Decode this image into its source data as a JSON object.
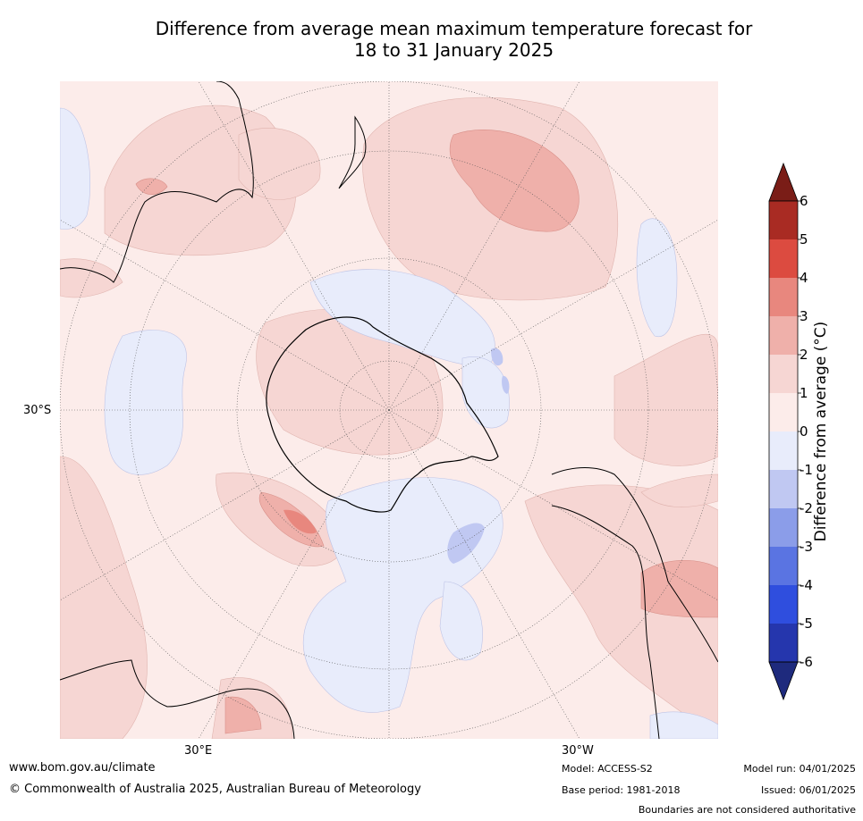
{
  "title": {
    "line1": "Difference from average mean maximum temperature forecast for",
    "line2": "18 to 31 January 2025"
  },
  "map": {
    "projection": "south-polar stereographic",
    "lat_label": "30°S",
    "lon_labels": [
      "30°E",
      "30°W"
    ]
  },
  "colorbar": {
    "title": "Difference from average (°C)",
    "ticks": [
      "6",
      "5",
      "4",
      "3",
      "2",
      "1",
      "0",
      "-1",
      "-2",
      "-3",
      "-4",
      "-5",
      "-6"
    ],
    "bands": [
      {
        "range": ">6",
        "color": "#7a1d17"
      },
      {
        "range": "5 to 6",
        "color": "#a92b23"
      },
      {
        "range": "4 to 5",
        "color": "#dc4b40"
      },
      {
        "range": "3 to 4",
        "color": "#e8877e"
      },
      {
        "range": "2 to 3",
        "color": "#efb0aa"
      },
      {
        "range": "1 to 2",
        "color": "#f6d6d3"
      },
      {
        "range": "0 to 1",
        "color": "#fcecea"
      },
      {
        "range": "-1 to 0",
        "color": "#e8ecfb"
      },
      {
        "range": "-2 to -1",
        "color": "#c0c8f2"
      },
      {
        "range": "-3 to -2",
        "color": "#8b9de9"
      },
      {
        "range": "-4 to -3",
        "color": "#5a74e2"
      },
      {
        "range": "-5 to -4",
        "color": "#2f4ede"
      },
      {
        "range": "-6 to -5",
        "color": "#2536ad"
      },
      {
        "range": "<-6",
        "color": "#1e2a7d"
      }
    ]
  },
  "footer": {
    "website": "www.bom.gov.au/climate",
    "copyright": "© Commonwealth of Australia 2025, Australian Bureau of Meteorology",
    "model": "Model: ACCESS-S2",
    "base_period": "Base period: 1981-2018",
    "model_run": "Model run: 04/01/2025",
    "issued": "Issued: 06/01/2025",
    "disclaimer": "Boundaries are not considered authoritative"
  }
}
